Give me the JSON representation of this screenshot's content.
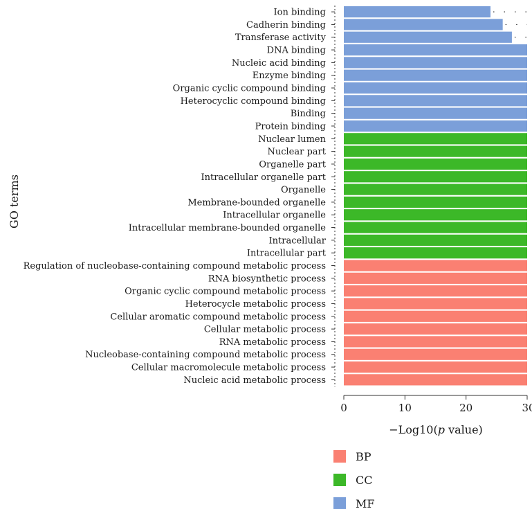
{
  "chart_data": {
    "type": "bar",
    "orientation": "horizontal",
    "xlabel": "−Log10(",
    "xlabel_italic": "p",
    "xlabel_suffix": " value)",
    "ylabel": "GO terms",
    "xlim": [
      0,
      30
    ],
    "xticks": [
      0,
      10,
      20,
      30
    ],
    "categories": [
      "Ion binding",
      "Cadherin binding",
      "Transferase activity",
      "DNA binding",
      "Nucleic acid binding",
      "Enzyme binding",
      "Organic cyclic compound binding",
      "Heterocyclic compound binding",
      "Binding",
      "Protein binding",
      "Nuclear lumen",
      "Nuclear part",
      "Organelle part",
      "Intracellular organelle part",
      "Organelle",
      "Membrane-bounded organelle",
      "Intracellular organelle",
      "Intracellular membrane-bounded organelle",
      "Intracellular",
      "Intracellular part",
      "Regulation of nucleobase-containing compound metabolic process",
      "RNA biosynthetic process",
      "Organic cyclic compound metabolic process",
      "Heterocycle metabolic process",
      "Cellular aromatic compound metabolic process",
      "Cellular metabolic process",
      "RNA metabolic process",
      "Nucleobase-containing compound metabolic process",
      "Cellular macromolecule metabolic process",
      "Nucleic acid metabolic process"
    ],
    "values": [
      24,
      26,
      27.5,
      30,
      30,
      30,
      30,
      30,
      30,
      30,
      30,
      30,
      30,
      30,
      30,
      30,
      30,
      30,
      30,
      30,
      30,
      30,
      30,
      30,
      30,
      30,
      30,
      30,
      30,
      30
    ],
    "groups": [
      "MF",
      "MF",
      "MF",
      "MF",
      "MF",
      "MF",
      "MF",
      "MF",
      "MF",
      "MF",
      "CC",
      "CC",
      "CC",
      "CC",
      "CC",
      "CC",
      "CC",
      "CC",
      "CC",
      "CC",
      "BP",
      "BP",
      "BP",
      "BP",
      "BP",
      "BP",
      "BP",
      "BP",
      "BP",
      "BP"
    ],
    "legend": [
      {
        "name": "BP",
        "color": "#fa8072"
      },
      {
        "name": "CC",
        "color": "#3cb828"
      },
      {
        "name": "MF",
        "color": "#7b9fd9"
      }
    ],
    "grid": false,
    "legend_position": "bottom"
  }
}
